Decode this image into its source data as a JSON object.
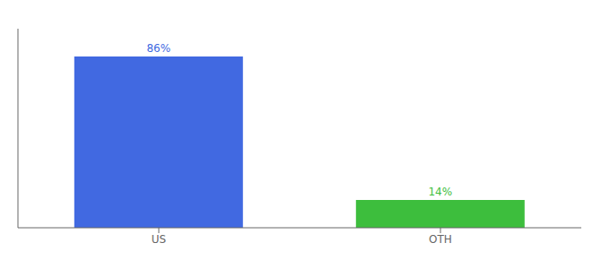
{
  "chart_data": {
    "type": "bar",
    "categories": [
      "US",
      "OTH"
    ],
    "values": [
      86,
      14
    ],
    "colors": [
      "#4169e1",
      "#3dbe3d"
    ],
    "value_labels": [
      "86%",
      "14%"
    ],
    "data_labels": true,
    "ylim": [
      0,
      100
    ],
    "tick_labels": "x",
    "grid": false
  }
}
